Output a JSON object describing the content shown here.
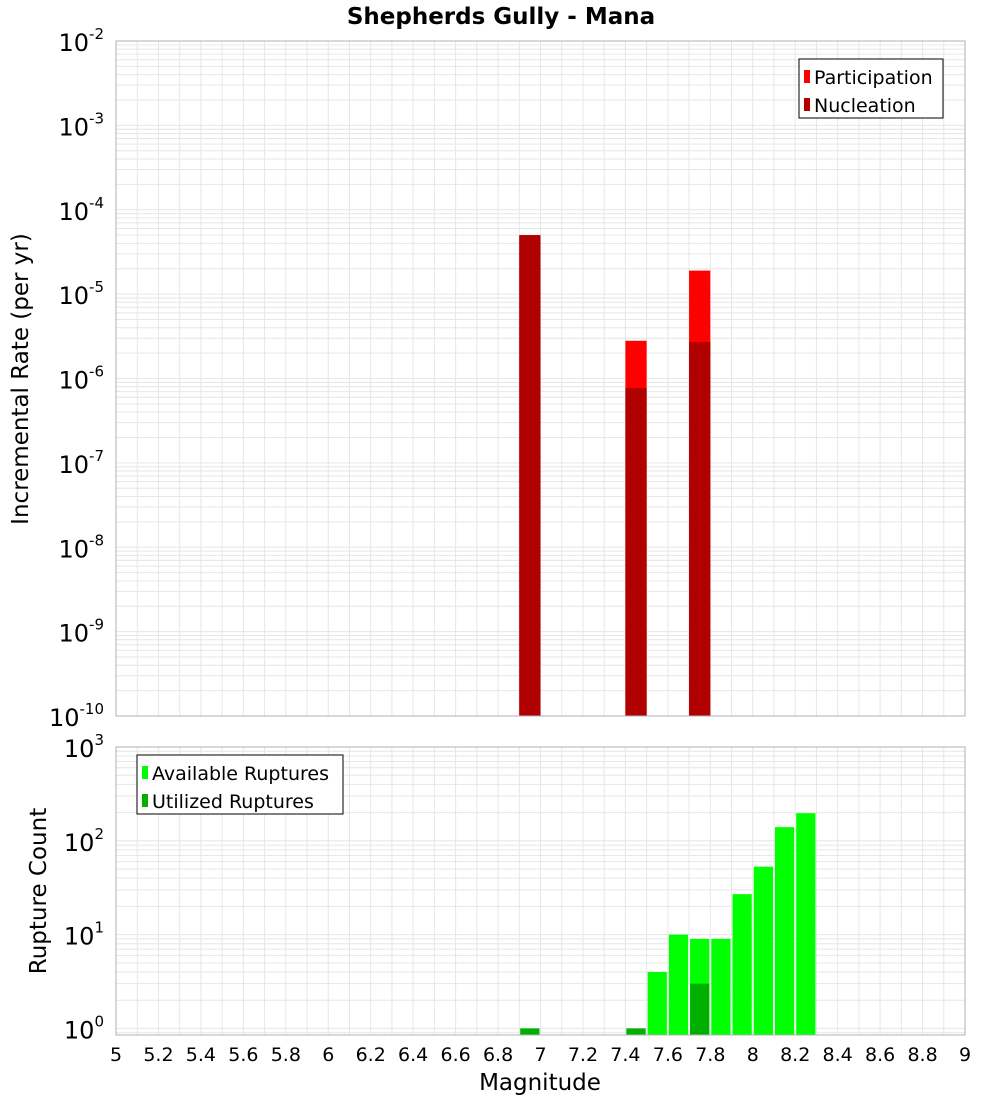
{
  "title": "Shepherds Gully - Mana",
  "chart_data": [
    {
      "type": "bar",
      "panel": "top",
      "ylabel": "Incremental Rate (per yr)",
      "yscale": "log",
      "ylim_exp": [
        -10,
        -2
      ],
      "xlim": [
        5,
        9
      ],
      "bar_width": 0.1,
      "grid": true,
      "legend_position": "top-right",
      "series": [
        {
          "name": "Participation",
          "color": "#ff0000",
          "x": [
            6.95,
            7.45,
            7.75
          ],
          "values": [
            5e-05,
            2.8e-06,
            1.9e-05
          ]
        },
        {
          "name": "Nucleation",
          "color": "#b00000",
          "x": [
            6.95,
            7.45,
            7.75
          ],
          "values": [
            5e-05,
            7.7e-07,
            2.7e-06
          ]
        }
      ]
    },
    {
      "type": "bar",
      "panel": "bottom",
      "ylabel": "Rupture Count",
      "xlabel": "Magnitude",
      "yscale": "log",
      "ylim_exp": [
        -0.07,
        3
      ],
      "xlim": [
        5,
        9
      ],
      "bar_width": 0.1,
      "grid": true,
      "legend_position": "top-left",
      "series": [
        {
          "name": "Available Ruptures",
          "color": "#00ff00",
          "x": [
            6.95,
            7.45,
            7.55,
            7.65,
            7.75,
            7.85,
            7.95,
            8.05,
            8.15,
            8.25
          ],
          "values": [
            1,
            1,
            4,
            10,
            9,
            9,
            27,
            53,
            140,
            197
          ]
        },
        {
          "name": "Utilized Ruptures",
          "color": "#00b000",
          "x": [
            6.95,
            7.45,
            7.75
          ],
          "values": [
            1,
            1,
            3
          ]
        }
      ],
      "x_ticks": [
        "5",
        "5.2",
        "5.4",
        "5.6",
        "5.8",
        "6",
        "6.2",
        "6.4",
        "6.6",
        "6.8",
        "7",
        "7.2",
        "7.4",
        "7.6",
        "7.8",
        "8",
        "8.2",
        "8.4",
        "8.6",
        "8.8",
        "9"
      ]
    }
  ]
}
